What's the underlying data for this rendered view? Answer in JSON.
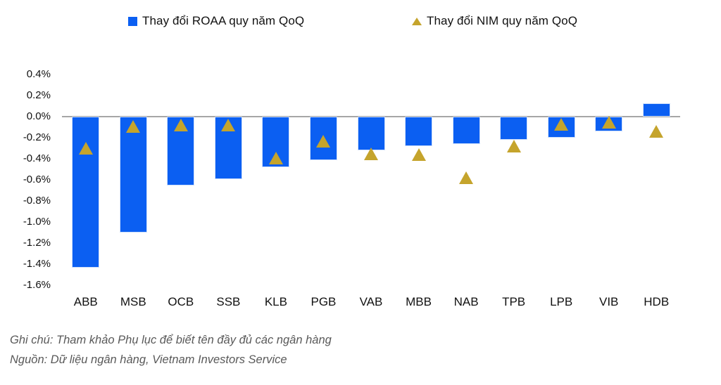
{
  "legend": [
    {
      "label": "Thay đổi ROAA quy năm QoQ",
      "marker": "square",
      "color": "#0b5ff2"
    },
    {
      "label": "Thay đổi NIM quy năm QoQ",
      "marker": "triangle",
      "color": "#c5a42c"
    }
  ],
  "chart_data": {
    "type": "bar",
    "title": "",
    "categories": [
      "ABB",
      "MSB",
      "OCB",
      "SSB",
      "KLB",
      "PGB",
      "VAB",
      "MBB",
      "NAB",
      "TPB",
      "LPB",
      "VIB",
      "HDB"
    ],
    "series": [
      {
        "name": "Thay đổi ROAA quy năm QoQ",
        "type": "bar",
        "color": "#0b5ff2",
        "values": [
          -1.43,
          -1.1,
          -0.65,
          -0.59,
          -0.48,
          -0.41,
          -0.32,
          -0.28,
          -0.26,
          -0.22,
          -0.2,
          -0.14,
          0.13
        ]
      },
      {
        "name": "Thay đổi NIM quy năm QoQ",
        "type": "scatter-triangle",
        "color": "#c5a42c",
        "values": [
          -0.3,
          -0.09,
          -0.08,
          -0.08,
          -0.39,
          -0.23,
          -0.35,
          -0.36,
          -0.58,
          -0.28,
          -0.07,
          -0.05,
          -0.14
        ]
      }
    ],
    "unit": "%",
    "ylim": [
      -1.6,
      0.4
    ],
    "ytick_step": 0.2,
    "yticks": [
      "0.4%",
      "0.2%",
      "0.0%",
      "-0.2%",
      "-0.4%",
      "-0.6%",
      "-0.8%",
      "-1.0%",
      "-1.2%",
      "-1.4%",
      "-1.6%"
    ],
    "grid": false,
    "legend_position": "top",
    "axis_color": "#a6a6a6"
  },
  "notes": {
    "line1": "Ghi chú: Tham khảo Phụ lục để biết tên đầy đủ các ngân hàng",
    "line2": "Nguồn: Dữ liệu ngân hàng, Vietnam Investors Service"
  }
}
